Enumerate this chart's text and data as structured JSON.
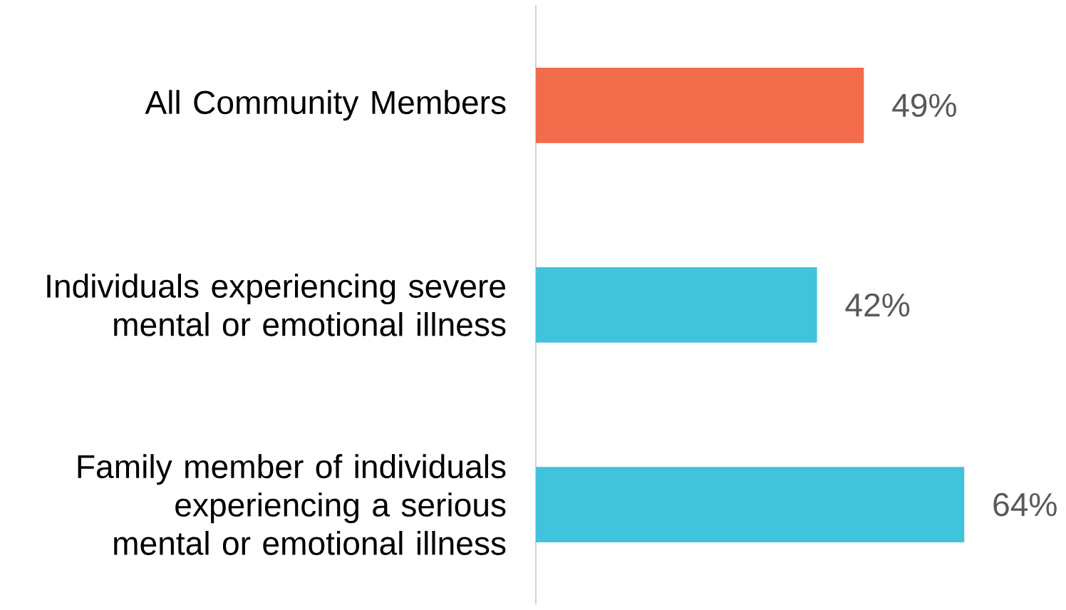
{
  "chart_data": {
    "type": "bar",
    "orientation": "horizontal",
    "categories": [
      "All Community Members",
      "Individuals experiencing severe mental or emotional illness",
      "Family member of individuals experiencing a serious mental or emotional illness"
    ],
    "values": [
      49,
      42,
      64
    ],
    "value_labels": [
      "49%",
      "42%",
      "64%"
    ],
    "colors": [
      "#f26b4a",
      "#41c3dc",
      "#41c3dc"
    ]
  }
}
